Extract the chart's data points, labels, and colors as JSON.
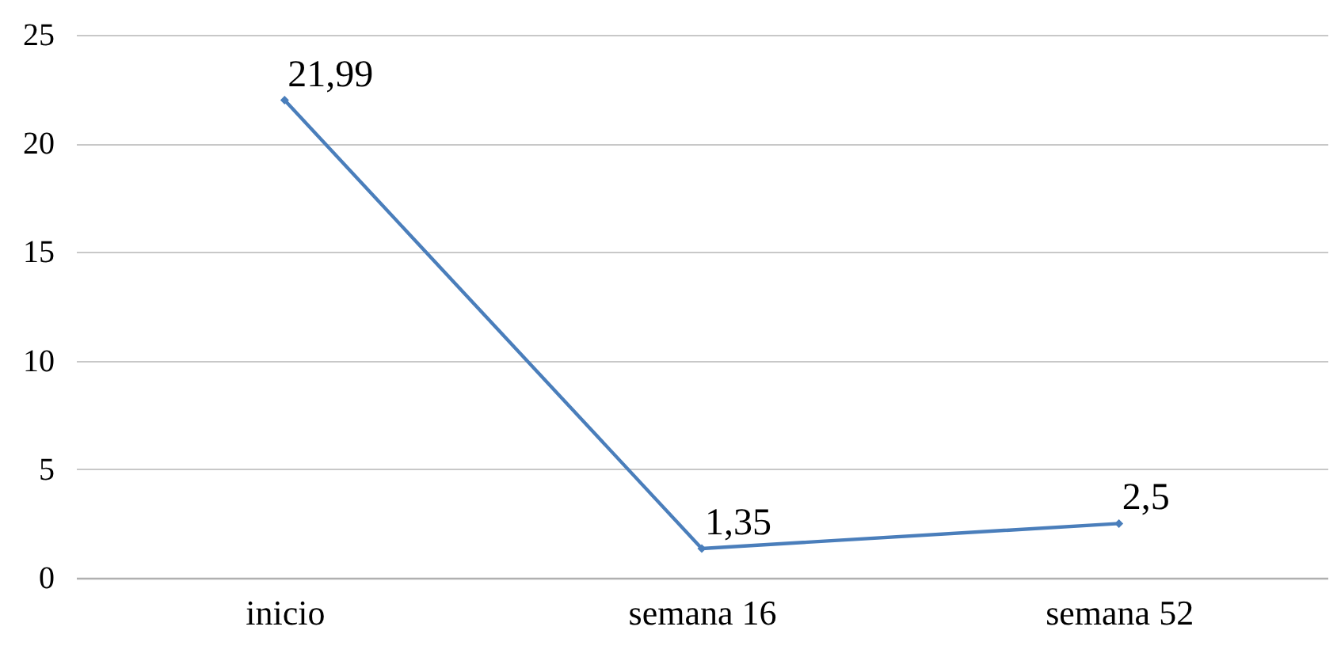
{
  "chart_data": {
    "type": "line",
    "categories": [
      "inicio",
      "semana 16",
      "semana 52"
    ],
    "series": [
      {
        "color": "#4a7ebb",
        "values": [
          21.99,
          1.35,
          2.5
        ],
        "value_labels": [
          "21,99",
          "1,35",
          "2,5"
        ]
      }
    ],
    "ylim": [
      0,
      25
    ],
    "yticks": [
      0,
      5,
      10,
      15,
      20,
      25
    ],
    "grid": "y",
    "marker": "diamond",
    "line_style": "solid"
  }
}
